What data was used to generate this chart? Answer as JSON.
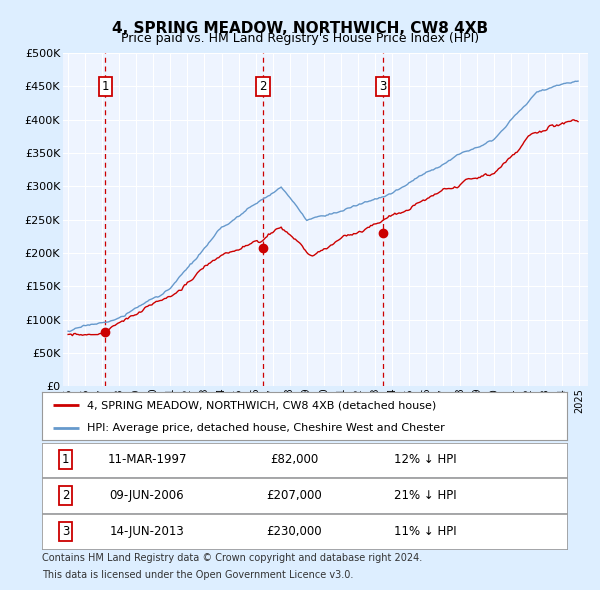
{
  "title": "4, SPRING MEADOW, NORTHWICH, CW8 4XB",
  "subtitle": "Price paid vs. HM Land Registry's House Price Index (HPI)",
  "ylim": [
    0,
    500000
  ],
  "yticks": [
    0,
    50000,
    100000,
    150000,
    200000,
    250000,
    300000,
    350000,
    400000,
    450000,
    500000
  ],
  "ytick_labels": [
    "£0",
    "£50K",
    "£100K",
    "£150K",
    "£200K",
    "£250K",
    "£300K",
    "£350K",
    "£400K",
    "£450K",
    "£500K"
  ],
  "xlim_start": 1994.7,
  "xlim_end": 2025.5,
  "sales": [
    {
      "label": "1",
      "date": "11-MAR-1997",
      "price": 82000,
      "year": 1997.19,
      "hpi_label": "12% ↓ HPI"
    },
    {
      "label": "2",
      "date": "09-JUN-2006",
      "price": 207000,
      "year": 2006.44,
      "hpi_label": "21% ↓ HPI"
    },
    {
      "label": "3",
      "date": "14-JUN-2013",
      "price": 230000,
      "year": 2013.45,
      "hpi_label": "11% ↓ HPI"
    }
  ],
  "legend_line1": "4, SPRING MEADOW, NORTHWICH, CW8 4XB (detached house)",
  "legend_line2": "HPI: Average price, detached house, Cheshire West and Chester",
  "footer1": "Contains HM Land Registry data © Crown copyright and database right 2024.",
  "footer2": "This data is licensed under the Open Government Licence v3.0.",
  "line_color_red": "#cc0000",
  "line_color_blue": "#6699cc",
  "bg_color": "#ddeeff",
  "plot_bg_color": "#eef4ff",
  "grid_color": "#ffffff",
  "marker_box_color": "#cc0000",
  "dashed_line_color": "#cc0000"
}
